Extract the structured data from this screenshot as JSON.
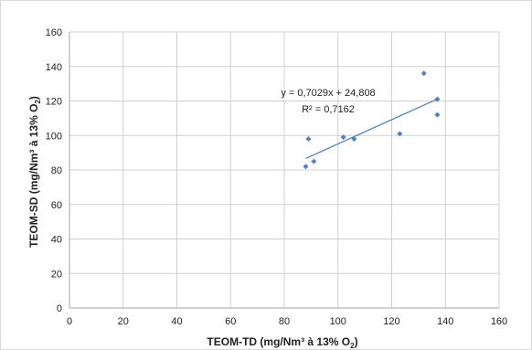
{
  "chart_data": {
    "type": "scatter",
    "title": "",
    "xlabel_main": "TEOM-TD (mg/Nm³ à 13% O",
    "xlabel_sub": "2",
    "xlabel_end": ")",
    "ylabel_main": "TEOM-SD (mg/Nm³ à 13% O",
    "ylabel_sub": "2",
    "ylabel_end": ")",
    "xlim": [
      0,
      160
    ],
    "ylim": [
      0,
      160
    ],
    "xticks": [
      0,
      20,
      40,
      60,
      80,
      100,
      120,
      140,
      160
    ],
    "yticks": [
      0,
      20,
      40,
      60,
      80,
      100,
      120,
      140,
      160
    ],
    "grid": true,
    "points": [
      {
        "x": 88,
        "y": 82
      },
      {
        "x": 89,
        "y": 98
      },
      {
        "x": 91,
        "y": 85
      },
      {
        "x": 102,
        "y": 99
      },
      {
        "x": 106,
        "y": 98
      },
      {
        "x": 123,
        "y": 101
      },
      {
        "x": 132,
        "y": 136
      },
      {
        "x": 137,
        "y": 121
      },
      {
        "x": 137,
        "y": 112
      }
    ],
    "trendline": {
      "slope": 0.7029,
      "intercept": 24.808,
      "x_range": [
        88,
        137
      ],
      "equation_label": "y = 0,7029x + 24,808",
      "r2_label": "R² = 0,7162"
    },
    "colors": {
      "points": "#4f81bd",
      "trendline": "#4f81bd",
      "grid": "#d0d0d0",
      "axis": "#a6a6a6"
    }
  }
}
